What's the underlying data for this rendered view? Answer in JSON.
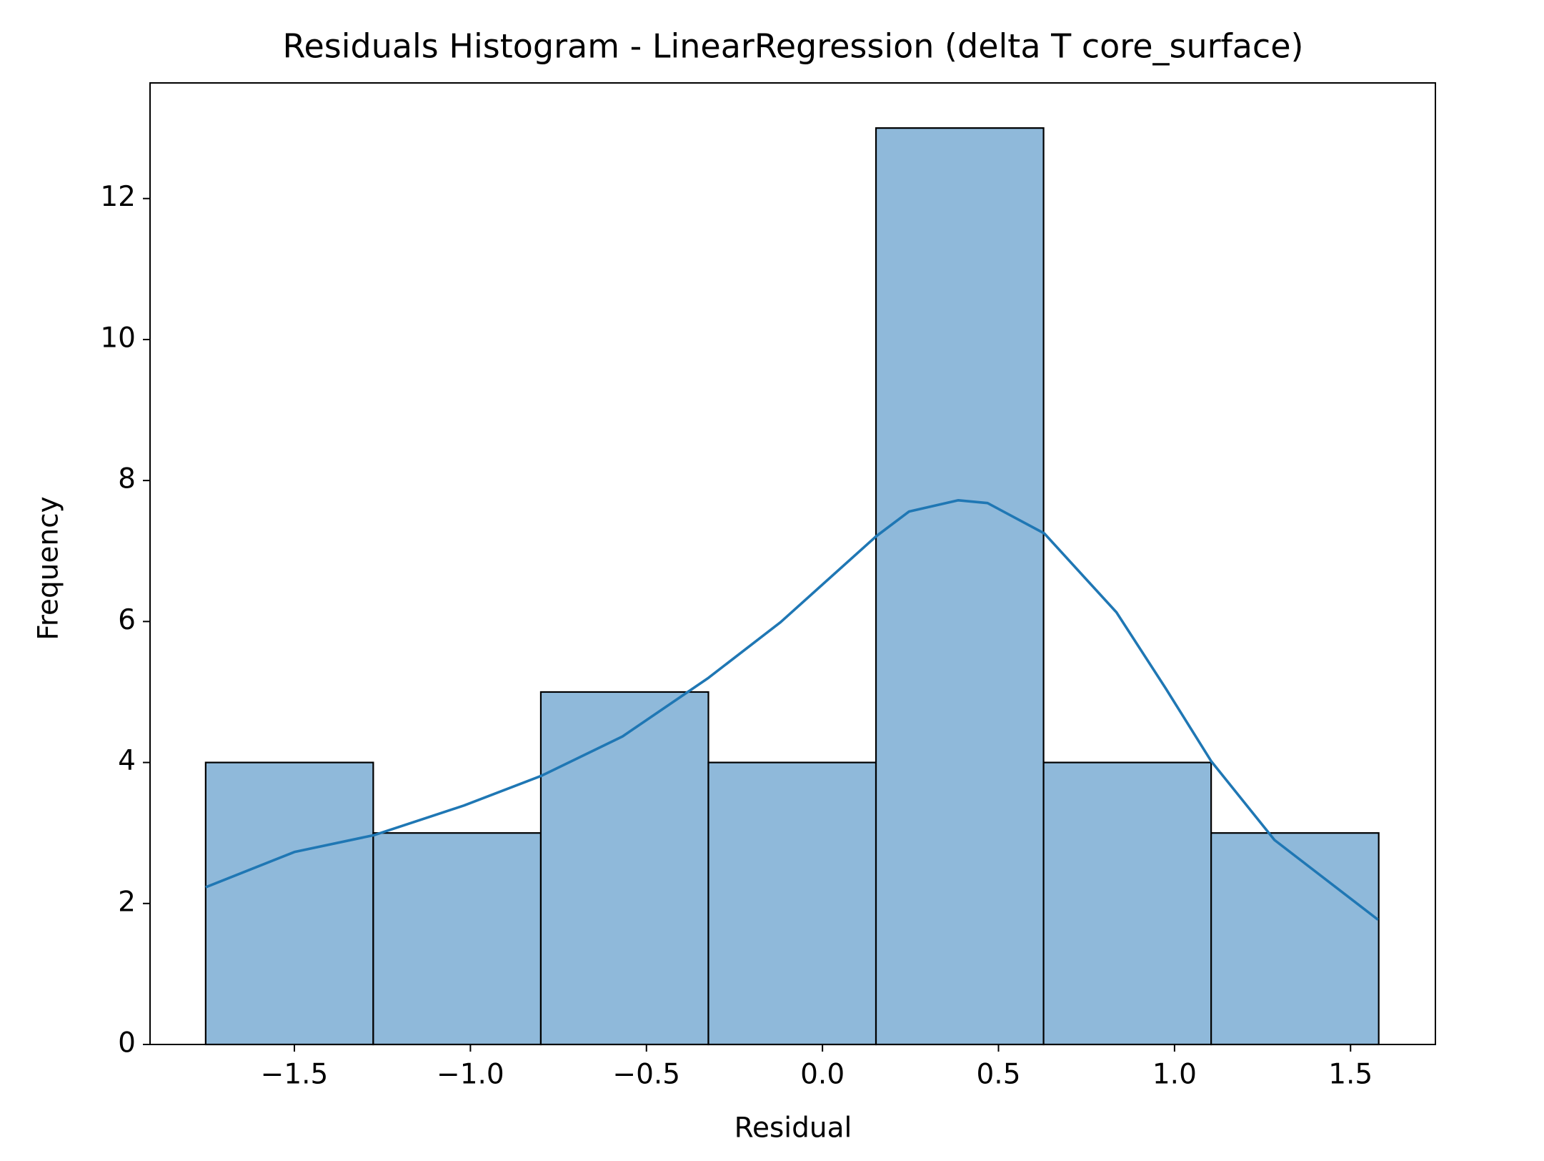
{
  "chart_data": {
    "type": "histogram",
    "title": "Residuals Histogram - LinearRegression (delta T core_surface)",
    "xlabel": "Residual",
    "ylabel": "Frequency",
    "bins": [
      -1.752,
      -1.276,
      -0.8,
      -0.324,
      0.152,
      0.628,
      1.104,
      1.58
    ],
    "values": [
      4,
      3,
      5,
      4,
      13,
      4,
      3
    ],
    "color": "#8fb9da",
    "edgecolor": "#000000",
    "kde": {
      "color": "#1f77b4",
      "x": [
        -1.752,
        -1.5,
        -1.273,
        -1.018,
        -0.799,
        -0.568,
        -0.324,
        -0.119,
        0.153,
        0.246,
        0.386,
        0.469,
        0.63,
        0.835,
        0.975,
        1.104,
        1.284,
        1.578
      ],
      "y": [
        2.23,
        2.73,
        2.97,
        3.39,
        3.81,
        4.37,
        5.2,
        5.99,
        7.21,
        7.56,
        7.72,
        7.68,
        7.25,
        6.13,
        5.05,
        4.02,
        2.9,
        1.77
      ]
    },
    "xlim": [
      -1.91,
      1.741
    ],
    "ylim": [
      0,
      13.64
    ],
    "xticks": [
      {
        "value": -1.5,
        "label": "−1.5"
      },
      {
        "value": -1.0,
        "label": "−1.0"
      },
      {
        "value": -0.5,
        "label": "−0.5"
      },
      {
        "value": 0,
        "label": "0.0"
      },
      0.5,
      {
        "value": 1,
        "label": "1.0"
      },
      1.5
    ],
    "yticks": [
      0,
      2,
      4,
      6,
      8,
      10,
      12
    ]
  }
}
